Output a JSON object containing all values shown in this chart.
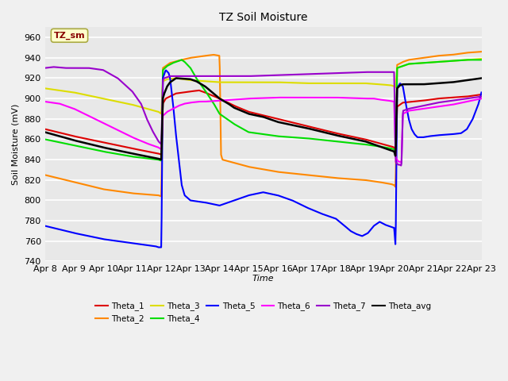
{
  "title": "TZ Soil Moisture",
  "xlabel": "Time",
  "ylabel": "Soil Moisture (mV)",
  "ylim": [
    740,
    970
  ],
  "xlim": [
    0,
    15
  ],
  "x_tick_labels": [
    "Apr 8",
    "Apr 9",
    "Apr 10",
    "Apr 11",
    "Apr 12",
    "Apr 13",
    "Apr 14",
    "Apr 15",
    "Apr 16",
    "Apr 17",
    "Apr 18",
    "Apr 19",
    "Apr 20",
    "Apr 21",
    "Apr 22",
    "Apr 23"
  ],
  "yticks": [
    740,
    760,
    780,
    800,
    820,
    840,
    860,
    880,
    900,
    920,
    940,
    960
  ],
  "background_color": "#e8e8e8",
  "plot_bg": "#e8e8e8",
  "grid_color": "#ffffff",
  "label_box_color": "#ffffcc",
  "label_box_text": "TZ_sm",
  "label_box_text_color": "#880000",
  "series": {
    "Theta_1": {
      "color": "#dd0000",
      "lw": 1.5
    },
    "Theta_2": {
      "color": "#ff8800",
      "lw": 1.5
    },
    "Theta_3": {
      "color": "#dddd00",
      "lw": 1.5
    },
    "Theta_4": {
      "color": "#00dd00",
      "lw": 1.5
    },
    "Theta_5": {
      "color": "#0000ff",
      "lw": 1.5
    },
    "Theta_6": {
      "color": "#ff00ff",
      "lw": 1.5
    },
    "Theta_7": {
      "color": "#9900cc",
      "lw": 1.5
    },
    "Theta_avg": {
      "color": "#000000",
      "lw": 1.8
    }
  }
}
